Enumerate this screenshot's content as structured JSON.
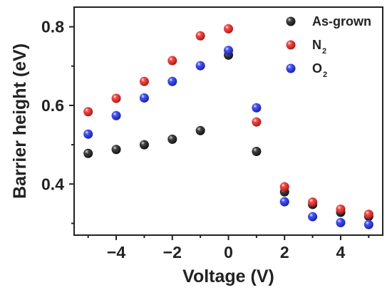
{
  "chart_data": {
    "type": "scatter",
    "xlabel": "Voltage (V)",
    "ylabel": "Barrier height (eV)",
    "xlim": [
      -5.5,
      5.5
    ],
    "ylim": [
      0.27,
      0.85
    ],
    "xticks": [
      -4,
      -2,
      0,
      2,
      4
    ],
    "xtick_labels": [
      "−4",
      "−2",
      "0",
      "2",
      "4"
    ],
    "yticks": [
      0.4,
      0.6,
      0.8
    ],
    "ytick_labels": [
      "0.4",
      "0.6",
      "0.8"
    ],
    "legend_position": "top-right",
    "x": [
      -5,
      -4,
      -3,
      -2,
      -1,
      0,
      1,
      2,
      3,
      4,
      5
    ],
    "series": [
      {
        "name": "As-grown",
        "label": "As-grown",
        "sub": "",
        "color": "#1a1a1a",
        "values": [
          0.478,
          0.488,
          0.5,
          0.514,
          0.536,
          0.728,
          0.483,
          0.38,
          0.348,
          0.328,
          0.318
        ]
      },
      {
        "name": "N2",
        "label": "N",
        "sub": "2",
        "color": "#e8231f",
        "values": [
          0.584,
          0.618,
          0.661,
          0.714,
          0.777,
          0.795,
          0.558,
          0.393,
          0.354,
          0.336,
          0.323
        ]
      },
      {
        "name": "O2",
        "label": "O",
        "sub": "2",
        "color": "#1f2ee8",
        "values": [
          0.527,
          0.574,
          0.619,
          0.661,
          0.701,
          0.74,
          0.594,
          0.355,
          0.317,
          0.302,
          0.297
        ]
      }
    ]
  }
}
